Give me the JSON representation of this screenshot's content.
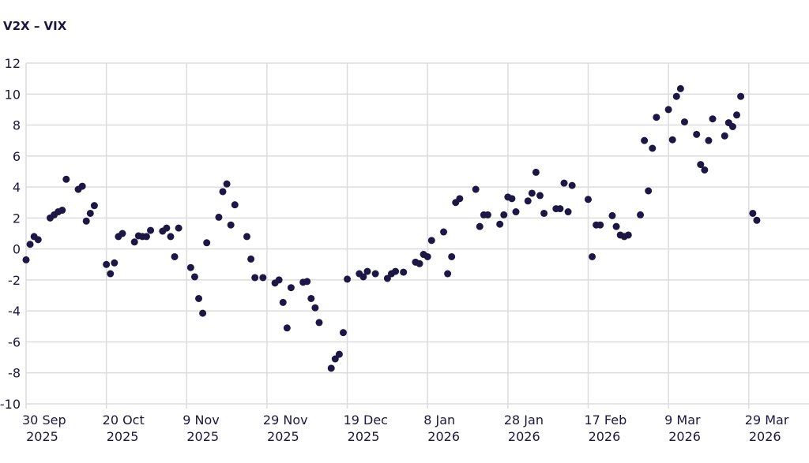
{
  "chart_data": {
    "type": "scatter",
    "title": "V2X – VIX",
    "color": "#1c1745",
    "grid": true,
    "x": [
      "2025-09-30",
      "2025-10-01",
      "2025-10-02",
      "2025-10-03",
      "2025-10-06",
      "2025-10-07",
      "2025-10-08",
      "2025-10-09",
      "2025-10-10",
      "2025-10-13",
      "2025-10-14",
      "2025-10-15",
      "2025-10-16",
      "2025-10-17",
      "2025-10-20",
      "2025-10-21",
      "2025-10-22",
      "2025-10-23",
      "2025-10-24",
      "2025-10-27",
      "2025-10-28",
      "2025-10-29",
      "2025-10-30",
      "2025-10-31",
      "2025-11-03",
      "2025-11-04",
      "2025-11-05",
      "2025-11-06",
      "2025-11-07",
      "2025-11-10",
      "2025-11-11",
      "2025-11-12",
      "2025-11-13",
      "2025-11-14",
      "2025-11-17",
      "2025-11-18",
      "2025-11-19",
      "2025-11-20",
      "2025-11-21",
      "2025-11-24",
      "2025-11-25",
      "2025-11-26",
      "2025-11-28",
      "2025-12-01",
      "2025-12-02",
      "2025-12-03",
      "2025-12-04",
      "2025-12-05",
      "2025-12-08",
      "2025-12-09",
      "2025-12-10",
      "2025-12-11",
      "2025-12-12",
      "2025-12-15",
      "2025-12-16",
      "2025-12-17",
      "2025-12-18",
      "2025-12-19",
      "2025-12-22",
      "2025-12-23",
      "2025-12-24",
      "2025-12-26",
      "2025-12-29",
      "2025-12-30",
      "2025-12-31",
      "2026-01-02",
      "2026-01-05",
      "2026-01-06",
      "2026-01-07",
      "2026-01-08",
      "2026-01-09",
      "2026-01-12",
      "2026-01-13",
      "2026-01-14",
      "2026-01-15",
      "2026-01-16",
      "2026-01-20",
      "2026-01-21",
      "2026-01-22",
      "2026-01-23",
      "2026-01-26",
      "2026-01-27",
      "2026-01-28",
      "2026-01-29",
      "2026-01-30",
      "2026-02-02",
      "2026-02-03",
      "2026-02-04",
      "2026-02-05",
      "2026-02-06",
      "2026-02-09",
      "2026-02-10",
      "2026-02-11",
      "2026-02-12",
      "2026-02-13",
      "2026-02-17",
      "2026-02-18",
      "2026-02-19",
      "2026-02-20",
      "2026-02-23",
      "2026-02-24",
      "2026-02-25",
      "2026-02-26",
      "2026-02-27",
      "2026-03-02",
      "2026-03-03",
      "2026-03-04",
      "2026-03-05",
      "2026-03-06",
      "2026-03-09",
      "2026-03-10",
      "2026-03-11",
      "2026-03-12",
      "2026-03-13",
      "2026-03-16",
      "2026-03-17",
      "2026-03-18",
      "2026-03-19",
      "2026-03-20",
      "2026-03-23",
      "2026-03-24",
      "2026-03-25",
      "2026-03-26",
      "2026-03-27",
      "2026-03-30",
      "2026-03-31"
    ],
    "values": [
      -0.7,
      0.3,
      0.8,
      0.6,
      2.0,
      2.2,
      2.4,
      2.5,
      4.5,
      3.85,
      4.05,
      1.8,
      2.3,
      2.8,
      -1.0,
      -1.6,
      -0.9,
      0.8,
      1.0,
      0.45,
      0.85,
      0.8,
      0.8,
      1.2,
      1.15,
      1.35,
      0.8,
      -0.5,
      1.35,
      -1.2,
      -1.8,
      -3.2,
      -4.15,
      0.4,
      2.05,
      3.7,
      4.2,
      1.55,
      2.85,
      0.8,
      -0.65,
      -1.85,
      -1.85,
      -2.2,
      -2.0,
      -3.45,
      -5.1,
      -2.5,
      -2.15,
      -2.1,
      -3.2,
      -3.8,
      -4.75,
      -7.7,
      -7.1,
      -6.8,
      -5.4,
      -1.95,
      -1.6,
      -1.8,
      -1.45,
      -1.6,
      -1.9,
      -1.6,
      -1.45,
      -1.5,
      -0.85,
      -0.95,
      -0.35,
      -0.5,
      0.55,
      1.1,
      -1.6,
      -0.5,
      3.0,
      3.25,
      3.85,
      1.45,
      2.2,
      2.2,
      1.6,
      2.2,
      3.35,
      3.25,
      2.4,
      3.1,
      3.6,
      4.95,
      3.45,
      2.3,
      2.6,
      2.6,
      4.25,
      2.4,
      4.1,
      3.2,
      -0.5,
      1.55,
      1.55,
      2.15,
      1.45,
      0.9,
      0.8,
      0.9,
      2.2,
      7.0,
      3.75,
      6.5,
      8.5,
      9.0,
      7.05,
      9.85,
      10.35,
      8.2,
      7.4,
      5.45,
      5.1,
      7.0,
      8.4,
      7.3,
      8.15,
      7.9,
      8.65,
      9.85,
      2.3,
      1.85
    ],
    "xlim": [
      "2025-09-30",
      "2026-04-13"
    ],
    "xticks": [
      {
        "value": "2025-09-30",
        "label": "30 Sep 2025"
      },
      {
        "value": "2025-10-20",
        "label": "20 Oct 2025"
      },
      {
        "value": "2025-11-09",
        "label": "9 Nov 2025"
      },
      {
        "value": "2025-11-29",
        "label": "29 Nov 2025"
      },
      {
        "value": "2025-12-19",
        "label": "19 Dec 2025"
      },
      {
        "value": "2026-01-08",
        "label": "8 Jan 2026"
      },
      {
        "value": "2026-01-28",
        "label": "28 Jan 2026"
      },
      {
        "value": "2026-02-17",
        "label": "17 Feb 2026"
      },
      {
        "value": "2026-03-09",
        "label": "9 Mar 2026"
      },
      {
        "value": "2026-03-29",
        "label": "29 Mar 2026"
      }
    ],
    "ylim": [
      -10,
      12
    ],
    "yticks": [
      -10,
      -8,
      -6,
      -4,
      -2,
      0,
      2,
      4,
      6,
      8,
      10,
      12
    ]
  }
}
